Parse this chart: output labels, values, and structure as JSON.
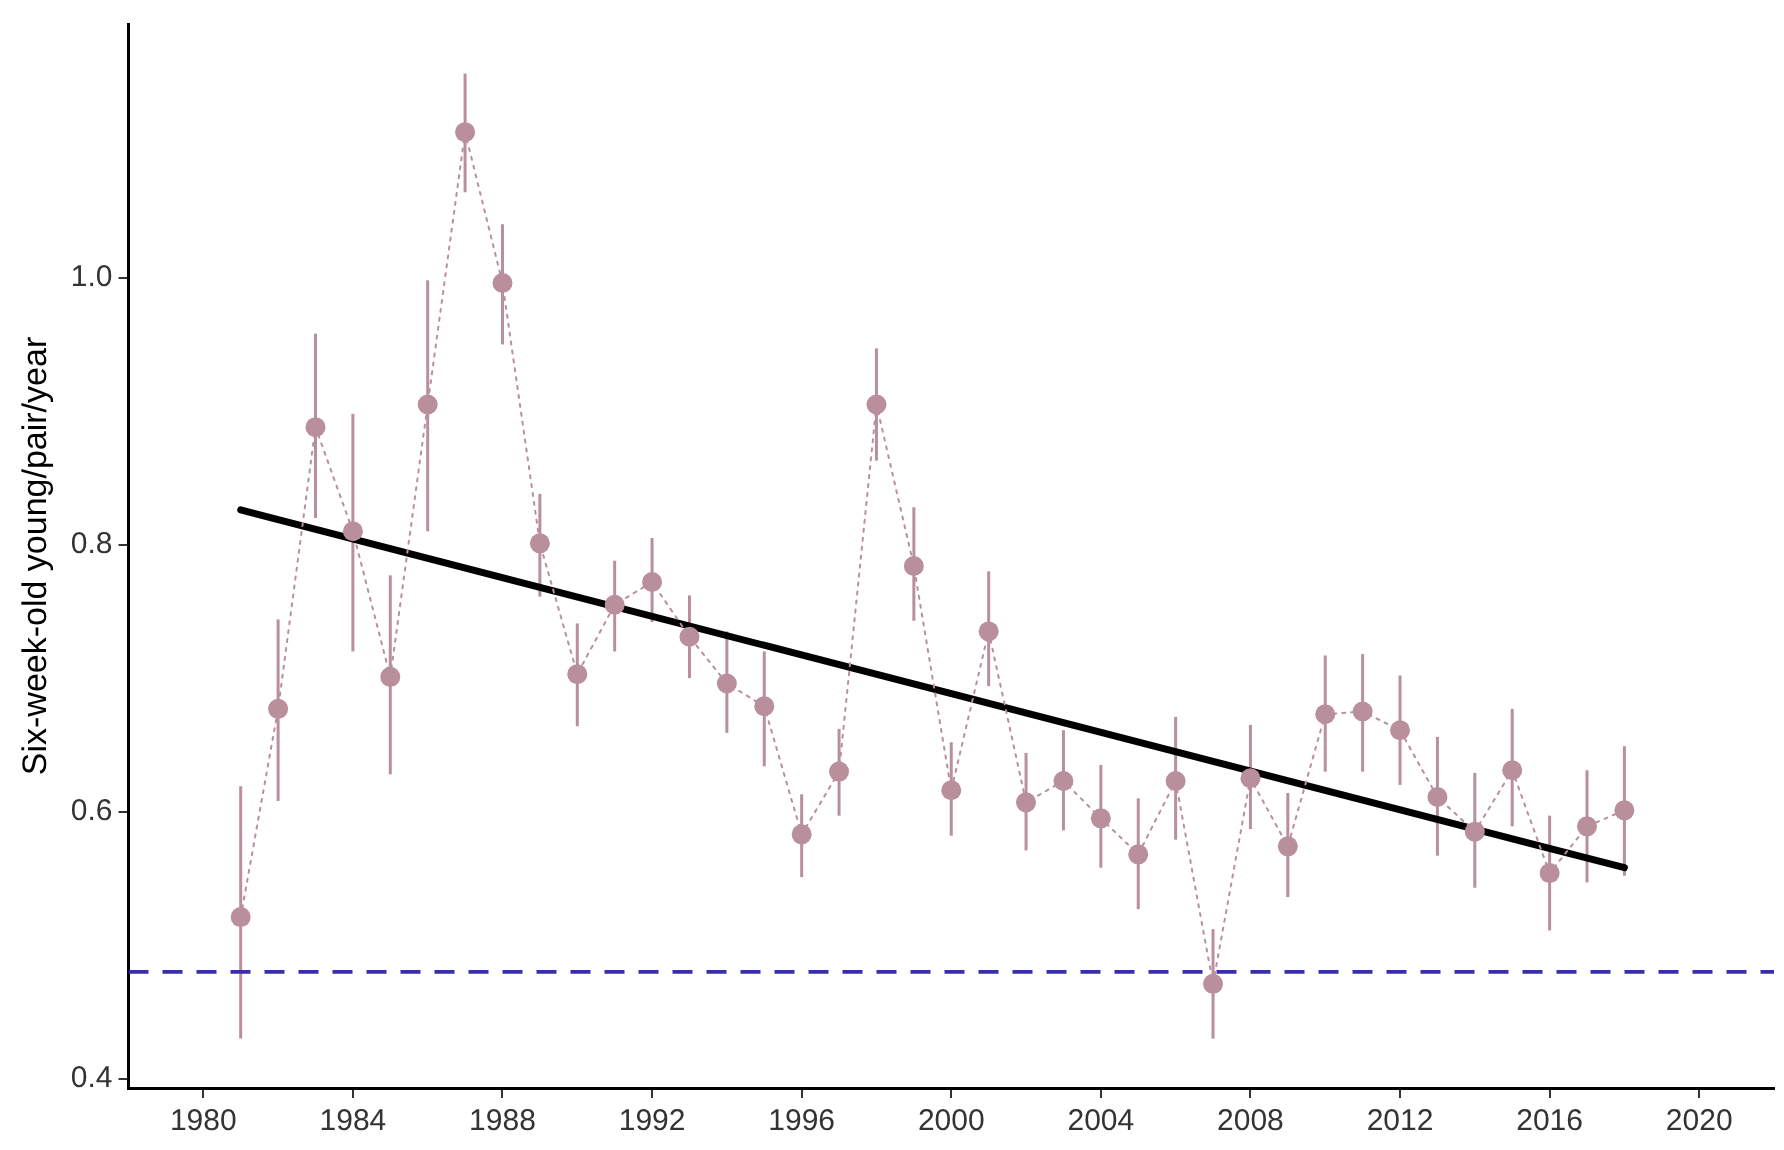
{
  "chart_data": {
    "type": "line",
    "ylabel": "Six-week-old young/pair/year",
    "xlim": [
      1978,
      2022
    ],
    "xticks": [
      1980,
      1984,
      1988,
      1992,
      1996,
      2000,
      2004,
      2008,
      2012,
      2016,
      2020
    ],
    "ylim": [
      0.393,
      1.19
    ],
    "yticks": [
      0.4,
      0.6,
      0.8,
      {
        "value": 1,
        "label": "1.0"
      }
    ],
    "grid": false,
    "legend": false,
    "series": [
      {
        "color": "#b98f9c",
        "marker": "circle",
        "line_style": "dotted",
        "x": [
          1981,
          1982,
          1983,
          1984,
          1985,
          1986,
          1987,
          1988,
          1989,
          1990,
          1991,
          1992,
          1993,
          1994,
          1995,
          1996,
          1997,
          1998,
          1999,
          2000,
          2001,
          2002,
          2003,
          2004,
          2005,
          2006,
          2007,
          2008,
          2009,
          2010,
          2011,
          2012,
          2013,
          2014,
          2015,
          2016,
          2017,
          2018
        ],
        "values": [
          0.521,
          0.677,
          0.888,
          0.81,
          0.701,
          0.905,
          1.109,
          0.996,
          0.801,
          0.703,
          0.755,
          0.772,
          0.731,
          0.696,
          0.679,
          0.583,
          0.63,
          0.905,
          0.784,
          0.616,
          0.735,
          0.607,
          0.623,
          0.595,
          0.568,
          0.623,
          0.471,
          0.625,
          0.574,
          0.673,
          0.675,
          0.661,
          0.611,
          0.585,
          0.631,
          0.554,
          0.589,
          0.601
        ],
        "errors": [
          [
            0.43,
            0.619
          ],
          [
            0.608,
            0.744
          ],
          [
            0.82,
            0.958
          ],
          [
            0.72,
            0.898
          ],
          [
            0.628,
            0.777
          ],
          [
            0.81,
            0.998
          ],
          [
            1.064,
            1.153
          ],
          [
            0.95,
            1.04
          ],
          [
            0.761,
            0.838
          ],
          [
            0.664,
            0.741
          ],
          [
            0.72,
            0.788
          ],
          [
            0.742,
            0.805
          ],
          [
            0.7,
            0.762
          ],
          [
            0.659,
            0.735
          ],
          [
            0.634,
            0.72
          ],
          [
            0.551,
            0.613
          ],
          [
            0.597,
            0.662
          ],
          [
            0.863,
            0.947
          ],
          [
            0.743,
            0.828
          ],
          [
            0.582,
            0.652
          ],
          [
            0.694,
            0.78
          ],
          [
            0.571,
            0.644
          ],
          [
            0.586,
            0.661
          ],
          [
            0.558,
            0.635
          ],
          [
            0.527,
            0.61
          ],
          [
            0.579,
            0.671
          ],
          [
            0.43,
            0.512
          ],
          [
            0.587,
            0.665
          ],
          [
            0.536,
            0.614
          ],
          [
            0.63,
            0.717
          ],
          [
            0.63,
            0.718
          ],
          [
            0.62,
            0.702
          ],
          [
            0.567,
            0.656
          ],
          [
            0.543,
            0.629
          ],
          [
            0.589,
            0.677
          ],
          [
            0.511,
            0.597
          ],
          [
            0.547,
            0.631
          ],
          [
            0.552,
            0.649
          ]
        ]
      },
      {
        "color": "#000000",
        "marker": "none",
        "line_style": "solid",
        "x": [
          1981,
          2018
        ],
        "values": [
          0.826,
          0.558
        ]
      }
    ],
    "ref_lines": [
      {
        "axis": "y",
        "value": 0.48,
        "color": "#3a2db0",
        "line_style": "dashed"
      }
    ]
  }
}
